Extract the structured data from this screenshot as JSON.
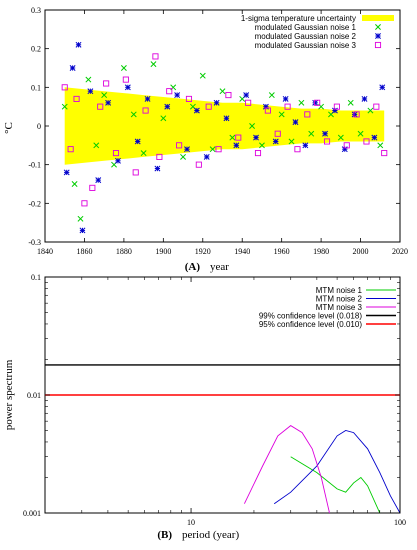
{
  "chart_data": [
    {
      "id": "A",
      "type": "scatter",
      "panel_label": "(A)",
      "xlabel": "year",
      "ylabel": "°C",
      "xlim": [
        1840,
        2020
      ],
      "ylim": [
        -0.3,
        0.3
      ],
      "xticks": [
        "1840",
        "1860",
        "1880",
        "1900",
        "1920",
        "1940",
        "1960",
        "1980",
        "2000",
        "2020"
      ],
      "yticks": [
        "-0.3",
        "-0.2",
        "-0.1",
        "0",
        "0.1",
        "0.2",
        "0.3"
      ],
      "grid": false,
      "legend_position": "top-right",
      "band": {
        "name": "1-sigma temperature uncertainty",
        "color": "#ffff00",
        "x": [
          1850,
          1860,
          1870,
          1880,
          1890,
          1900,
          1910,
          1920,
          1930,
          1940,
          1950,
          1960,
          1970,
          1980,
          1990,
          2000,
          2012
        ],
        "upper": [
          0.1,
          0.095,
          0.09,
          0.085,
          0.08,
          0.075,
          0.07,
          0.065,
          0.06,
          0.06,
          0.055,
          0.05,
          0.045,
          0.045,
          0.04,
          0.04,
          0.04
        ],
        "lower": [
          -0.1,
          -0.095,
          -0.09,
          -0.085,
          -0.08,
          -0.075,
          -0.07,
          -0.065,
          -0.06,
          -0.06,
          -0.055,
          -0.05,
          -0.045,
          -0.045,
          -0.04,
          -0.04,
          -0.04
        ]
      },
      "series": [
        {
          "name": "modulated Gaussian noise 1",
          "color": "#00cc00",
          "marker": "x",
          "x": [
            1850,
            1855,
            1858,
            1862,
            1866,
            1870,
            1875,
            1880,
            1885,
            1890,
            1895,
            1900,
            1905,
            1910,
            1915,
            1920,
            1925,
            1930,
            1935,
            1940,
            1945,
            1950,
            1955,
            1960,
            1965,
            1970,
            1975,
            1980,
            1985,
            1990,
            1995,
            2000,
            2005,
            2010
          ],
          "y": [
            0.05,
            -0.15,
            -0.24,
            0.12,
            -0.05,
            0.08,
            -0.1,
            0.15,
            0.03,
            -0.07,
            0.16,
            0.02,
            0.1,
            -0.08,
            0.05,
            0.13,
            -0.06,
            0.09,
            -0.03,
            0.07,
            0.0,
            -0.05,
            0.08,
            0.03,
            -0.04,
            0.06,
            -0.02,
            0.05,
            0.03,
            -0.03,
            0.06,
            -0.02,
            0.04,
            -0.05
          ]
        },
        {
          "name": "modulated Gaussian noise 2",
          "color": "#0000cc",
          "marker": "*",
          "x": [
            1851,
            1854,
            1857,
            1859,
            1863,
            1867,
            1872,
            1877,
            1882,
            1887,
            1892,
            1897,
            1902,
            1907,
            1912,
            1917,
            1922,
            1927,
            1932,
            1937,
            1942,
            1947,
            1952,
            1957,
            1962,
            1967,
            1972,
            1977,
            1982,
            1987,
            1992,
            1997,
            2002,
            2007,
            2011
          ],
          "y": [
            -0.12,
            0.15,
            0.21,
            -0.27,
            0.09,
            -0.14,
            0.06,
            -0.09,
            0.1,
            -0.04,
            0.07,
            -0.11,
            0.05,
            0.08,
            -0.06,
            0.04,
            -0.08,
            0.06,
            0.02,
            -0.05,
            0.08,
            -0.03,
            0.05,
            -0.04,
            0.07,
            0.01,
            -0.05,
            0.06,
            -0.02,
            0.04,
            -0.06,
            0.03,
            0.07,
            -0.03,
            0.1
          ]
        },
        {
          "name": "modulated Gaussian noise 3",
          "color": "#dd00dd",
          "marker": "square",
          "x": [
            1850,
            1853,
            1856,
            1860,
            1864,
            1868,
            1871,
            1876,
            1881,
            1886,
            1891,
            1896,
            1898,
            1903,
            1908,
            1913,
            1918,
            1923,
            1928,
            1933,
            1938,
            1943,
            1948,
            1953,
            1958,
            1963,
            1968,
            1973,
            1978,
            1983,
            1988,
            1993,
            1998,
            2003,
            2008,
            2012
          ],
          "y": [
            0.1,
            -0.06,
            0.07,
            -0.2,
            -0.16,
            0.05,
            0.11,
            -0.07,
            0.12,
            -0.12,
            0.04,
            0.18,
            -0.08,
            0.09,
            -0.05,
            0.07,
            -0.1,
            0.05,
            -0.06,
            0.08,
            -0.03,
            0.06,
            -0.07,
            0.04,
            -0.02,
            0.05,
            -0.06,
            0.03,
            0.06,
            -0.04,
            0.05,
            -0.05,
            0.03,
            -0.04,
            0.05,
            -0.07
          ]
        }
      ]
    },
    {
      "id": "B",
      "type": "line",
      "panel_label": "(B)",
      "xlabel": "period (year)",
      "ylabel": "power spectrum",
      "xscale": "log",
      "yscale": "log",
      "xlim": [
        2,
        100
      ],
      "ylim": [
        0.001,
        0.1
      ],
      "xticks": [
        "10",
        "100"
      ],
      "yticks": [
        "0.001",
        "0.01",
        "0.1"
      ],
      "grid": false,
      "legend_position": "top-right",
      "series": [
        {
          "name": "MTM noise 1",
          "color": "#00cc00",
          "x": [
            30,
            40,
            50,
            55,
            60,
            65,
            70,
            80
          ],
          "y": [
            0.003,
            0.0022,
            0.0016,
            0.0015,
            0.0018,
            0.002,
            0.0017,
            0.001
          ]
        },
        {
          "name": "MTM noise 2",
          "color": "#0000cc",
          "x": [
            25,
            30,
            40,
            50,
            55,
            60,
            70,
            80,
            90,
            100
          ],
          "y": [
            0.0012,
            0.0015,
            0.0025,
            0.0045,
            0.005,
            0.0048,
            0.0035,
            0.0022,
            0.0014,
            0.001
          ]
        },
        {
          "name": "MTM noise 3",
          "color": "#dd00dd",
          "x": [
            18,
            22,
            26,
            30,
            34,
            38,
            42,
            46
          ],
          "y": [
            0.0012,
            0.0025,
            0.0045,
            0.0055,
            0.0048,
            0.0035,
            0.002,
            0.001
          ]
        },
        {
          "name": "99% confidence level (0.018)",
          "color": "#000000",
          "x": [
            2,
            100
          ],
          "y": [
            0.018,
            0.018
          ]
        },
        {
          "name": "95% confidence level (0.010)",
          "color": "#ff0000",
          "x": [
            2,
            100
          ],
          "y": [
            0.01,
            0.01
          ]
        }
      ]
    }
  ]
}
